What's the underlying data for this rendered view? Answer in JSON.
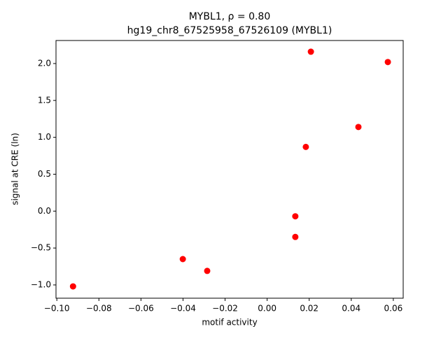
{
  "chart_data": {
    "type": "scatter",
    "title": [
      "MYBL1, ρ = 0.80",
      "hg19_chr8_67525958_67526109 (MYBL1)"
    ],
    "x_label": "motif activity",
    "y_label": "signal at CRE (ln)",
    "series": [
      {
        "color": "#ff0000",
        "x": [
          -0.0923,
          -0.0401,
          -0.0285,
          0.0134,
          0.0134,
          0.0184,
          0.0208,
          0.0434,
          0.0574
        ],
        "values": [
          -1.02,
          -0.65,
          -0.81,
          -0.07,
          -0.35,
          0.87,
          2.16,
          1.14,
          2.02
        ]
      }
    ],
    "xlim": [
      -0.1004,
      0.0647
    ],
    "ylim": [
      -1.18,
      2.312
    ],
    "xticks": [
      {
        "value": -0.1,
        "label": "−0.10"
      },
      {
        "value": -0.08,
        "label": "−0.08"
      },
      {
        "value": -0.06,
        "label": "−0.06"
      },
      {
        "value": -0.04,
        "label": "−0.04"
      },
      {
        "value": -0.02,
        "label": "−0.02"
      },
      {
        "value": 0,
        "label": "0.00"
      },
      {
        "value": 0.02,
        "label": "0.02"
      },
      {
        "value": 0.04,
        "label": "0.04"
      },
      {
        "value": 0.06,
        "label": "0.06"
      }
    ],
    "yticks": [
      {
        "value": -1,
        "label": "−1.0"
      },
      {
        "value": -0.5,
        "label": "−0.5"
      },
      {
        "value": 0,
        "label": "0.0"
      },
      {
        "value": 0.5,
        "label": "0.5"
      },
      {
        "value": 1,
        "label": "1.0"
      },
      {
        "value": 1.5,
        "label": "1.5"
      },
      {
        "value": 2,
        "label": "2.0"
      }
    ],
    "grid": false
  }
}
